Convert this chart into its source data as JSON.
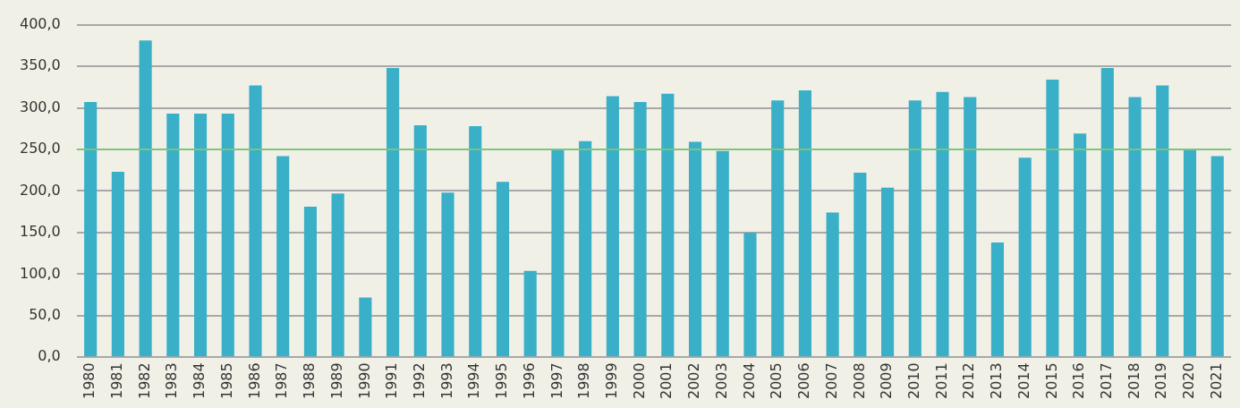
{
  "chart_data": {
    "type": "bar",
    "categories": [
      "1980",
      "1981",
      "1982",
      "1983",
      "1984",
      "1985",
      "1986",
      "1987",
      "1988",
      "1989",
      "1990",
      "1991",
      "1992",
      "1993",
      "1994",
      "1995",
      "1996",
      "1997",
      "1998",
      "1999",
      "2000",
      "2001",
      "2002",
      "2003",
      "2004",
      "2005",
      "2006",
      "2007",
      "2008",
      "2009",
      "2010",
      "2011",
      "2012",
      "2013",
      "2014",
      "2015",
      "2016",
      "2017",
      "2018",
      "2019",
      "2020",
      "2021"
    ],
    "values": [
      307,
      223,
      381,
      293,
      293,
      293,
      327,
      242,
      181,
      197,
      72,
      348,
      279,
      198,
      278,
      211,
      104,
      250,
      260,
      314,
      307,
      317,
      259,
      248,
      150,
      309,
      321,
      174,
      222,
      204,
      309,
      319,
      313,
      138,
      240,
      334,
      269,
      348,
      313,
      327,
      250,
      242
    ],
    "color": "#3aafc8",
    "ylim": [
      0,
      400
    ],
    "yticks": [
      {
        "value": 0,
        "label": "0,0"
      },
      {
        "value": 50,
        "label": "50,0"
      },
      {
        "value": 100,
        "label": "100,0"
      },
      {
        "value": 150,
        "label": "150,0"
      },
      {
        "value": 200,
        "label": "200,0"
      },
      {
        "value": 250,
        "label": "250,0"
      },
      {
        "value": 300,
        "label": "300,0"
      },
      {
        "value": 350,
        "label": "350,0"
      },
      {
        "value": 400,
        "label": "400,0"
      }
    ],
    "grid": "y",
    "ref_lines": [
      {
        "axis": "y",
        "value": 250,
        "color": "#7cc47f"
      }
    ]
  }
}
